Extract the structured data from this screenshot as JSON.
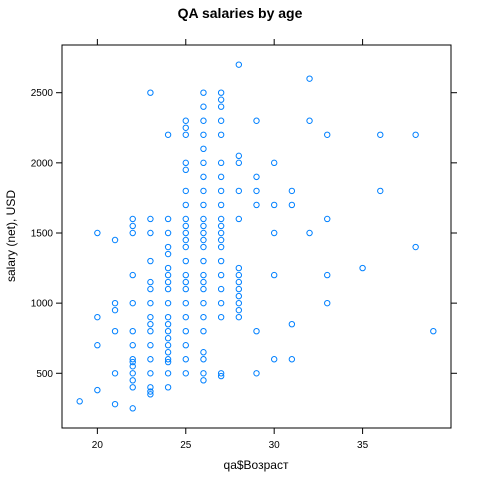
{
  "chart_data": {
    "type": "scatter",
    "title": "QA salaries by age",
    "xlabel": "qa$Возраст",
    "ylabel": "salary (net), USD",
    "xlim": [
      18.0,
      40.0
    ],
    "ylim": [
      110,
      2840
    ],
    "x_ticks": [
      20,
      25,
      30,
      35
    ],
    "y_ticks": [
      500,
      1000,
      1500,
      2000,
      2500
    ],
    "grid": false,
    "point_color": "#0080ff",
    "points": [
      {
        "x": 19,
        "y": 300
      },
      {
        "x": 20,
        "y": 900
      },
      {
        "x": 20,
        "y": 700
      },
      {
        "x": 20,
        "y": 1500
      },
      {
        "x": 20,
        "y": 380
      },
      {
        "x": 21,
        "y": 1450
      },
      {
        "x": 21,
        "y": 1000
      },
      {
        "x": 21,
        "y": 950
      },
      {
        "x": 21,
        "y": 800
      },
      {
        "x": 21,
        "y": 500
      },
      {
        "x": 21,
        "y": 280
      },
      {
        "x": 22,
        "y": 1600
      },
      {
        "x": 22,
        "y": 1550
      },
      {
        "x": 22,
        "y": 1500
      },
      {
        "x": 22,
        "y": 1200
      },
      {
        "x": 22,
        "y": 1000
      },
      {
        "x": 22,
        "y": 800
      },
      {
        "x": 22,
        "y": 700
      },
      {
        "x": 22,
        "y": 600
      },
      {
        "x": 22,
        "y": 580
      },
      {
        "x": 22,
        "y": 550
      },
      {
        "x": 22,
        "y": 500
      },
      {
        "x": 22,
        "y": 450
      },
      {
        "x": 22,
        "y": 400
      },
      {
        "x": 22,
        "y": 250
      },
      {
        "x": 23,
        "y": 2500
      },
      {
        "x": 23,
        "y": 1600
      },
      {
        "x": 23,
        "y": 1500
      },
      {
        "x": 23,
        "y": 1300
      },
      {
        "x": 23,
        "y": 1150
      },
      {
        "x": 23,
        "y": 1100
      },
      {
        "x": 23,
        "y": 1000
      },
      {
        "x": 23,
        "y": 900
      },
      {
        "x": 23,
        "y": 850
      },
      {
        "x": 23,
        "y": 800
      },
      {
        "x": 23,
        "y": 700
      },
      {
        "x": 23,
        "y": 600
      },
      {
        "x": 23,
        "y": 500
      },
      {
        "x": 23,
        "y": 400
      },
      {
        "x": 23,
        "y": 370
      },
      {
        "x": 23,
        "y": 350
      },
      {
        "x": 24,
        "y": 2200
      },
      {
        "x": 24,
        "y": 1600
      },
      {
        "x": 24,
        "y": 1500
      },
      {
        "x": 24,
        "y": 1400
      },
      {
        "x": 24,
        "y": 1350
      },
      {
        "x": 24,
        "y": 1250
      },
      {
        "x": 24,
        "y": 1200
      },
      {
        "x": 24,
        "y": 1150
      },
      {
        "x": 24,
        "y": 1100
      },
      {
        "x": 24,
        "y": 1000
      },
      {
        "x": 24,
        "y": 900
      },
      {
        "x": 24,
        "y": 850
      },
      {
        "x": 24,
        "y": 800
      },
      {
        "x": 24,
        "y": 750
      },
      {
        "x": 24,
        "y": 700
      },
      {
        "x": 24,
        "y": 650
      },
      {
        "x": 24,
        "y": 600
      },
      {
        "x": 24,
        "y": 580
      },
      {
        "x": 24,
        "y": 500
      },
      {
        "x": 24,
        "y": 400
      },
      {
        "x": 25,
        "y": 2300
      },
      {
        "x": 25,
        "y": 2250
      },
      {
        "x": 25,
        "y": 2200
      },
      {
        "x": 25,
        "y": 2000
      },
      {
        "x": 25,
        "y": 1950
      },
      {
        "x": 25,
        "y": 1800
      },
      {
        "x": 25,
        "y": 1700
      },
      {
        "x": 25,
        "y": 1600
      },
      {
        "x": 25,
        "y": 1550
      },
      {
        "x": 25,
        "y": 1500
      },
      {
        "x": 25,
        "y": 1450
      },
      {
        "x": 25,
        "y": 1400
      },
      {
        "x": 25,
        "y": 1300
      },
      {
        "x": 25,
        "y": 1200
      },
      {
        "x": 25,
        "y": 1150
      },
      {
        "x": 25,
        "y": 1100
      },
      {
        "x": 25,
        "y": 1000
      },
      {
        "x": 25,
        "y": 900
      },
      {
        "x": 25,
        "y": 800
      },
      {
        "x": 25,
        "y": 700
      },
      {
        "x": 25,
        "y": 600
      },
      {
        "x": 25,
        "y": 500
      },
      {
        "x": 26,
        "y": 2500
      },
      {
        "x": 26,
        "y": 2400
      },
      {
        "x": 26,
        "y": 2300
      },
      {
        "x": 26,
        "y": 2200
      },
      {
        "x": 26,
        "y": 2100
      },
      {
        "x": 26,
        "y": 2000
      },
      {
        "x": 26,
        "y": 1900
      },
      {
        "x": 26,
        "y": 1800
      },
      {
        "x": 26,
        "y": 1700
      },
      {
        "x": 26,
        "y": 1600
      },
      {
        "x": 26,
        "y": 1550
      },
      {
        "x": 26,
        "y": 1500
      },
      {
        "x": 26,
        "y": 1450
      },
      {
        "x": 26,
        "y": 1400
      },
      {
        "x": 26,
        "y": 1300
      },
      {
        "x": 26,
        "y": 1200
      },
      {
        "x": 26,
        "y": 1150
      },
      {
        "x": 26,
        "y": 1100
      },
      {
        "x": 26,
        "y": 1000
      },
      {
        "x": 26,
        "y": 900
      },
      {
        "x": 26,
        "y": 800
      },
      {
        "x": 26,
        "y": 650
      },
      {
        "x": 26,
        "y": 600
      },
      {
        "x": 26,
        "y": 500
      },
      {
        "x": 26,
        "y": 450
      },
      {
        "x": 27,
        "y": 2500
      },
      {
        "x": 27,
        "y": 2450
      },
      {
        "x": 27,
        "y": 2400
      },
      {
        "x": 27,
        "y": 2300
      },
      {
        "x": 27,
        "y": 2200
      },
      {
        "x": 27,
        "y": 2000
      },
      {
        "x": 27,
        "y": 1900
      },
      {
        "x": 27,
        "y": 1800
      },
      {
        "x": 27,
        "y": 1700
      },
      {
        "x": 27,
        "y": 1600
      },
      {
        "x": 27,
        "y": 1550
      },
      {
        "x": 27,
        "y": 1500
      },
      {
        "x": 27,
        "y": 1450
      },
      {
        "x": 27,
        "y": 1400
      },
      {
        "x": 27,
        "y": 1300
      },
      {
        "x": 27,
        "y": 1200
      },
      {
        "x": 27,
        "y": 1100
      },
      {
        "x": 27,
        "y": 1000
      },
      {
        "x": 27,
        "y": 900
      },
      {
        "x": 27,
        "y": 500
      },
      {
        "x": 27,
        "y": 480
      },
      {
        "x": 28,
        "y": 2700
      },
      {
        "x": 28,
        "y": 2050
      },
      {
        "x": 28,
        "y": 2000
      },
      {
        "x": 28,
        "y": 1800
      },
      {
        "x": 28,
        "y": 1600
      },
      {
        "x": 28,
        "y": 1250
      },
      {
        "x": 28,
        "y": 1200
      },
      {
        "x": 28,
        "y": 1150
      },
      {
        "x": 28,
        "y": 1100
      },
      {
        "x": 28,
        "y": 1050
      },
      {
        "x": 28,
        "y": 1000
      },
      {
        "x": 28,
        "y": 950
      },
      {
        "x": 28,
        "y": 900
      },
      {
        "x": 29,
        "y": 2300
      },
      {
        "x": 29,
        "y": 1900
      },
      {
        "x": 29,
        "y": 1800
      },
      {
        "x": 29,
        "y": 1700
      },
      {
        "x": 29,
        "y": 800
      },
      {
        "x": 29,
        "y": 500
      },
      {
        "x": 30,
        "y": 2000
      },
      {
        "x": 30,
        "y": 1700
      },
      {
        "x": 30,
        "y": 1500
      },
      {
        "x": 30,
        "y": 1200
      },
      {
        "x": 30,
        "y": 600
      },
      {
        "x": 31,
        "y": 1800
      },
      {
        "x": 31,
        "y": 1700
      },
      {
        "x": 31,
        "y": 850
      },
      {
        "x": 31,
        "y": 600
      },
      {
        "x": 32,
        "y": 2600
      },
      {
        "x": 32,
        "y": 2300
      },
      {
        "x": 32,
        "y": 1500
      },
      {
        "x": 33,
        "y": 2200
      },
      {
        "x": 33,
        "y": 1600
      },
      {
        "x": 33,
        "y": 1200
      },
      {
        "x": 33,
        "y": 1000
      },
      {
        "x": 35,
        "y": 1250
      },
      {
        "x": 36,
        "y": 2200
      },
      {
        "x": 36,
        "y": 1800
      },
      {
        "x": 38,
        "y": 2200
      },
      {
        "x": 38,
        "y": 1400
      },
      {
        "x": 39,
        "y": 800
      }
    ]
  }
}
